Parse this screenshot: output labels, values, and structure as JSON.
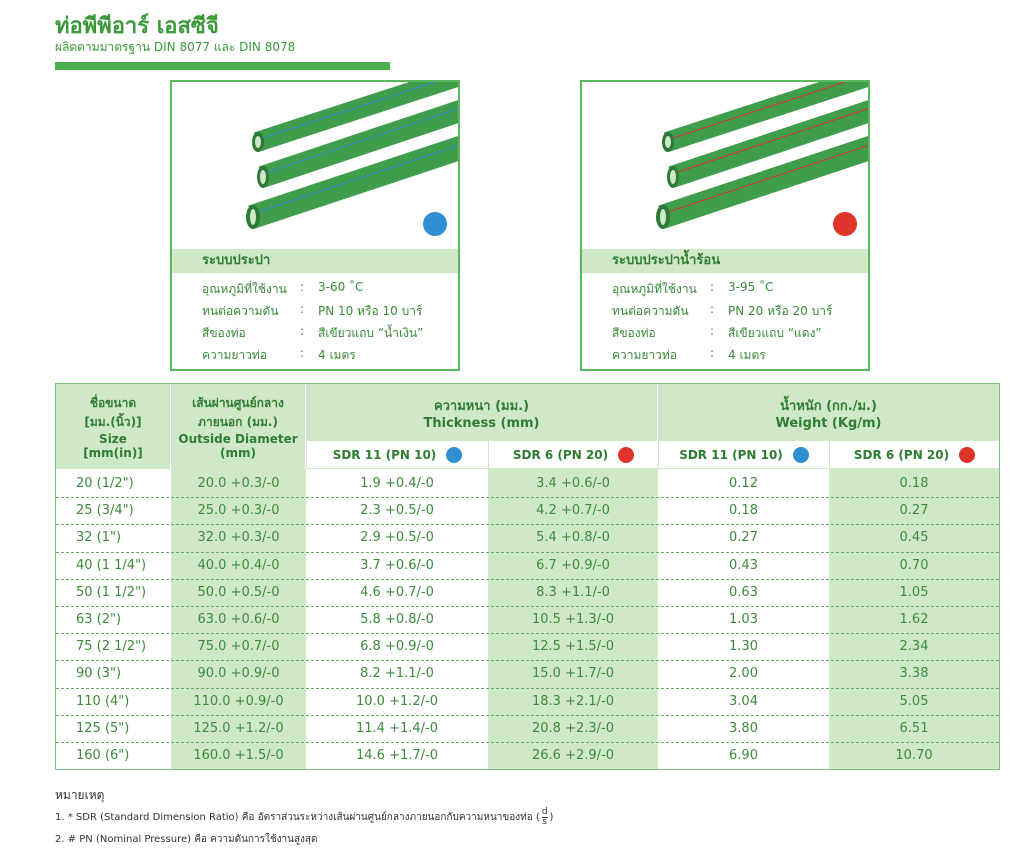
{
  "header": {
    "title": "ท่อพีพีอาร์ เอสซีจี",
    "subtitle": "ผลิตตามมาตรฐาน DIN 8077 และ DIN 8078"
  },
  "cards": [
    {
      "title": "ระบบประปา",
      "separator": ":",
      "color": "#2f8fd0",
      "specs": [
        {
          "label": "อุณหภูมิที่ใช้งาน",
          "value": "3-60 ˚C"
        },
        {
          "label": "ทนต่อความดัน",
          "value": "PN 10 หรือ 10 บาร์"
        },
        {
          "label": "สีของท่อ",
          "value": "สีเขียวแถบ “น้ำเงิน”"
        },
        {
          "label": "ความยาวท่อ",
          "value": "4 เมตร"
        }
      ]
    },
    {
      "title": "ระบบประปาน้ำร้อน",
      "separator": ":",
      "color": "#e0332a",
      "specs": [
        {
          "label": "อุณหภูมิที่ใช้งาน",
          "value": "3-95 ˚C"
        },
        {
          "label": "ทนต่อความดัน",
          "value": "PN 20 หรือ 20 บาร์"
        },
        {
          "label": "สีของท่อ",
          "value": "สีเขียวแถบ “แดง”"
        },
        {
          "label": "ความยาวท่อ",
          "value": "4 เมตร"
        }
      ]
    }
  ],
  "table": {
    "size_header": [
      "ชื่อขนาด",
      "[มม.(นิ้ว)]",
      "Size",
      "[mm(in)]"
    ],
    "od_header": [
      "เส้นผ่านศูนย์กลาง",
      "ภายนอก (มม.)",
      "Outside Diameter",
      "(mm)"
    ],
    "thickness_header": [
      "ความหนา (มม.)",
      "Thickness (mm)"
    ],
    "weight_header": [
      "น้ำหนัก (กก./ม.)",
      "Weight (Kg/m)"
    ],
    "sub_headers": [
      "SDR 11 (PN 10)",
      "SDR 6 (PN 20)",
      "SDR 11 (PN 10)",
      "SDR 6 (PN 20)"
    ],
    "rows": [
      [
        "20  (1/2\")",
        "20.0 +0.3/-0",
        "1.9 +0.4/-0",
        "3.4 +0.6/-0",
        "0.12",
        "0.18"
      ],
      [
        "25  (3/4\")",
        "25.0 +0.3/-0",
        "2.3 +0.5/-0",
        "4.2 +0.7/-0",
        "0.18",
        "0.27"
      ],
      [
        "32  (1\")",
        "32.0 +0.3/-0",
        "2.9 +0.5/-0",
        "5.4 +0.8/-0",
        "0.27",
        "0.45"
      ],
      [
        "40  (1 1/4\")",
        "40.0 +0.4/-0",
        "3.7 +0.6/-0",
        "6.7 +0.9/-0",
        "0.43",
        "0.70"
      ],
      [
        "50  (1 1/2\")",
        "50.0 +0.5/-0",
        "4.6 +0.7/-0",
        "8.3 +1.1/-0",
        "0.63",
        "1.05"
      ],
      [
        "63  (2\")",
        "63.0 +0.6/-0",
        "5.8 +0.8/-0",
        "10.5 +1.3/-0",
        "1.03",
        "1.62"
      ],
      [
        "75  (2 1/2\")",
        "75.0 +0.7/-0",
        "6.8 +0.9/-0",
        "12.5 +1.5/-0",
        "1.30",
        "2.34"
      ],
      [
        "90  (3\")",
        "90.0 +0.9/-0",
        "8.2 +1.1/-0",
        "15.0 +1.7/-0",
        "2.00",
        "3.38"
      ],
      [
        "110 (4\")",
        "110.0 +0.9/-0",
        "10.0 +1.2/-0",
        "18.3 +2.1/-0",
        "3.04",
        "5.05"
      ],
      [
        "125 (5\")",
        "125.0 +1.2/-0",
        "11.4 +1.4/-0",
        "20.8 +2.3/-0",
        "3.80",
        "6.51"
      ],
      [
        "160 (6\")",
        "160.0 +1.5/-0",
        "14.6 +1.7/-0",
        "26.6 +2.9/-0",
        "6.90",
        "10.70"
      ]
    ]
  },
  "notes": {
    "title": "หมายเหตุ",
    "note1": {
      "prefix": "1. * SDR (Standard Dimension Ratio) คือ อัตราส่วนระหว่างเส้นผ่านศูนย์กลางภายนอกกับความหนาของท่อ (",
      "numerator": "d",
      "denominator": "s",
      "suffix": ")"
    },
    "note2": "2. # PN  (Nominal Pressure) คือ ความดันการใช้งานสูงสุด"
  }
}
